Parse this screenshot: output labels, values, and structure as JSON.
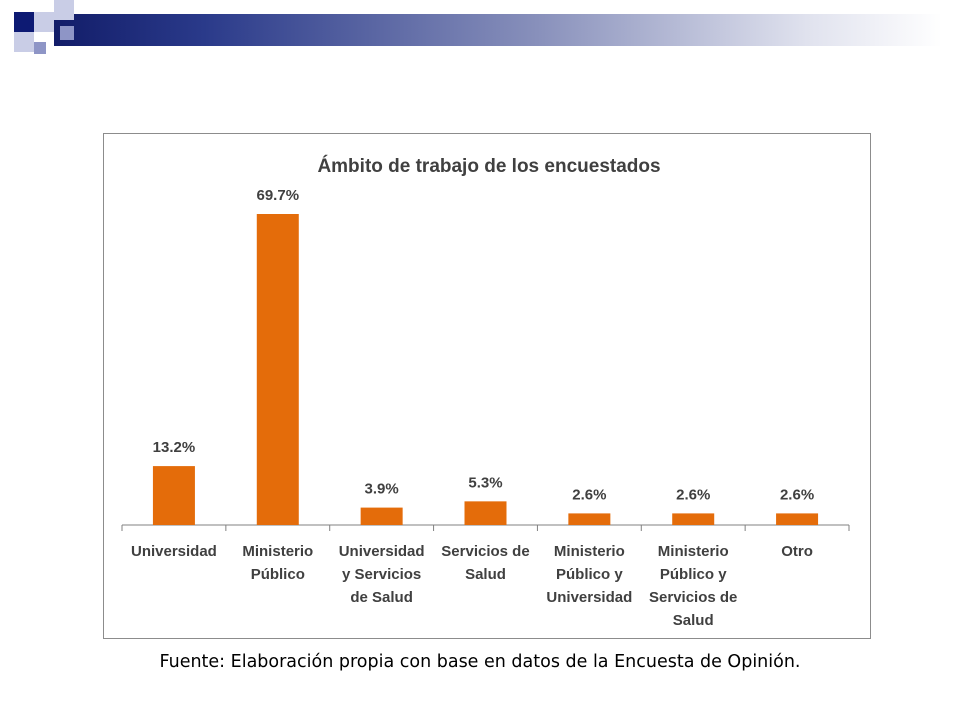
{
  "source_note": "Fuente: Elaboración propia con base en datos de la Encuesta de Opinión.",
  "chart_data": {
    "type": "bar",
    "title": "Ámbito de trabajo de los encuestados",
    "categories": [
      [
        "Universidad"
      ],
      [
        "Ministerio",
        "Público"
      ],
      [
        "Universidad",
        "y Servicios",
        "de Salud"
      ],
      [
        "Servicios de",
        "Salud"
      ],
      [
        "Ministerio",
        "Público y",
        "Universidad"
      ],
      [
        "Ministerio",
        "Público y",
        "Servicios de",
        "Salud"
      ],
      [
        "Otro"
      ]
    ],
    "values": [
      13.2,
      69.7,
      3.9,
      5.3,
      2.6,
      2.6,
      2.6
    ],
    "data_labels": [
      "13.2%",
      "69.7%",
      "3.9%",
      "5.3%",
      "2.6%",
      "2.6%",
      "2.6%"
    ],
    "bar_color": "#e46c0a",
    "grid": false,
    "legend": false
  }
}
